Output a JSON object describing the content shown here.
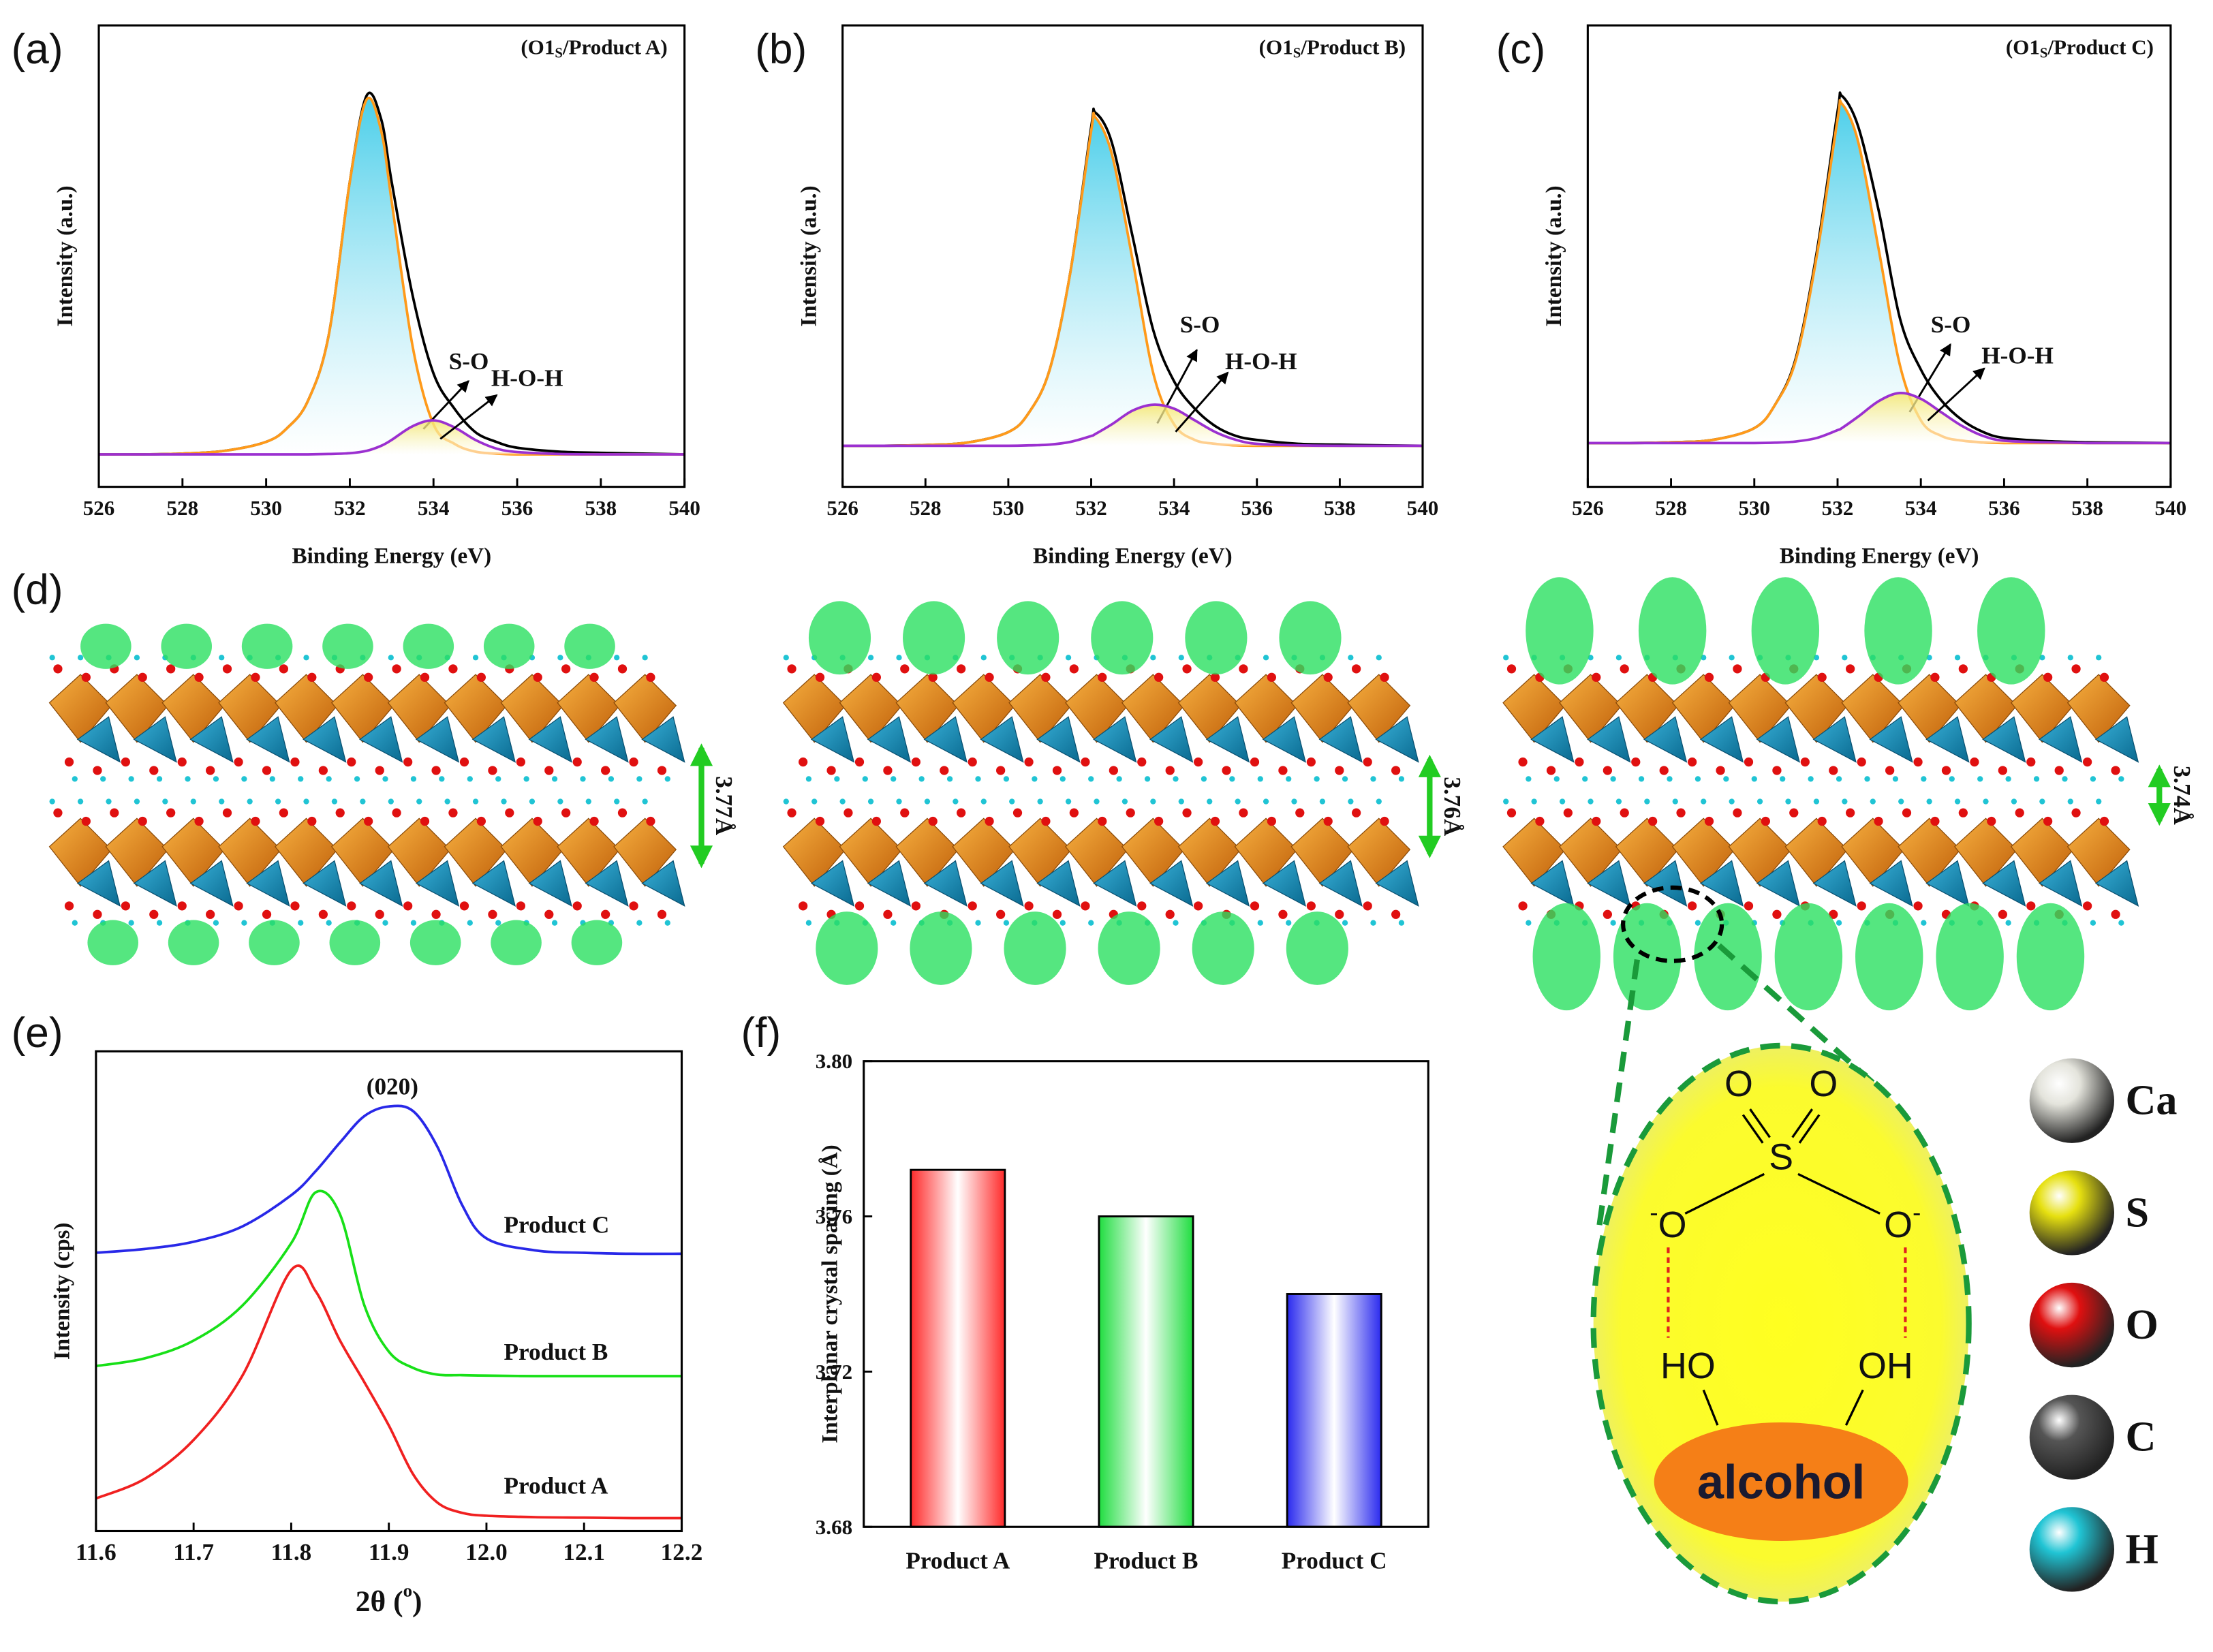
{
  "chart_data": [
    {
      "type": "line",
      "panel_label": "(a)",
      "title": [
        "(O1",
        "S",
        "/Product A)"
      ],
      "x_label": "Binding Energy (eV)",
      "y_label": "Intensity (a.u.)",
      "x": [
        526,
        527,
        528,
        529,
        530,
        530.5,
        531,
        531.5,
        532,
        532.4,
        532.75,
        533,
        533.5,
        534,
        534.5,
        535,
        535.5,
        536,
        537,
        538,
        539,
        540
      ],
      "xlim": [
        526,
        540
      ],
      "xticks": [
        526,
        528,
        530,
        532,
        534,
        536,
        538,
        540
      ],
      "ylim": [
        0,
        118
      ],
      "series": [
        {
          "color": "#000000",
          "values": [
            8.3,
            8.3,
            8.5,
            9.2,
            11.5,
            15,
            22,
            39,
            78,
            100,
            94,
            78,
            49,
            29,
            20,
            14,
            11.5,
            10,
            9,
            8.7,
            8.5,
            8.3
          ]
        },
        {
          "name": "S-O",
          "color": "#ff9a1a",
          "fill": "#2cc6e6",
          "values": [
            8.3,
            8.3,
            8.5,
            9.2,
            11.5,
            15,
            22,
            39,
            78,
            99,
            91,
            73,
            36,
            16,
            11,
            9,
            8.5,
            8.3,
            8.3,
            8.3,
            8.3,
            8.3
          ]
        },
        {
          "name": "H-O-H",
          "color": "#9b30d0",
          "fill": "#f5e66a",
          "values": [
            8.3,
            8.3,
            8.3,
            8.3,
            8.3,
            8.3,
            8.3,
            8.4,
            8.6,
            9.2,
            10.5,
            12,
            15.5,
            17,
            15.2,
            12,
            9.8,
            8.9,
            8.4,
            8.3,
            8.3,
            8.3
          ]
        }
      ]
    },
    {
      "type": "line",
      "panel_label": "(b)",
      "title": [
        "(O1",
        "S",
        "/Product B)"
      ],
      "x_label": "Binding Energy (eV)",
      "y_label": "Intensity (a.u.)",
      "x": [
        526,
        527,
        528,
        529,
        530,
        530.5,
        531,
        531.5,
        532,
        532.1,
        532.5,
        533,
        533.5,
        534,
        534.5,
        535,
        535.5,
        536,
        537,
        538,
        539,
        540
      ],
      "xlim": [
        526,
        540
      ],
      "xticks": [
        526,
        528,
        530,
        532,
        534,
        536,
        538,
        540
      ],
      "ylim": [
        0,
        118
      ],
      "series": [
        {
          "color": "#000000",
          "values": [
            10.5,
            10.5,
            10.7,
            11.3,
            14,
            19,
            30,
            55,
            92,
            95.7,
            88,
            64,
            40,
            27,
            20,
            15.5,
            13,
            12,
            11,
            10.8,
            10.6,
            10.5
          ]
        },
        {
          "name": "S-O",
          "color": "#ff9a1a",
          "fill": "#2cc6e6",
          "values": [
            10.5,
            10.5,
            10.7,
            11.3,
            14,
            19,
            30,
            55,
            91,
            94.5,
            85,
            58,
            29,
            16,
            12,
            11,
            10.6,
            10.5,
            10.5,
            10.5,
            10.5,
            10.5
          ]
        },
        {
          "name": "H-O-H",
          "color": "#9b30d0",
          "fill": "#f5e66a",
          "values": [
            10.5,
            10.5,
            10.5,
            10.5,
            10.5,
            10.6,
            10.8,
            11.5,
            13,
            13.5,
            16,
            19.5,
            21,
            20,
            17,
            14,
            12,
            11,
            10.6,
            10.5,
            10.5,
            10.5
          ]
        }
      ]
    },
    {
      "type": "line",
      "panel_label": "(c)",
      "title": [
        "(O1",
        "S",
        "/Product C)"
      ],
      "x_label": "Binding Energy (eV)",
      "y_label": "Intensity (a.u.)",
      "x": [
        526,
        527,
        528,
        529,
        530,
        530.5,
        531,
        531.5,
        532,
        532.1,
        532.5,
        533,
        533.5,
        534,
        534.5,
        535,
        535.5,
        536,
        537,
        538,
        539,
        540
      ],
      "xlim": [
        526,
        540
      ],
      "xticks": [
        526,
        528,
        530,
        532,
        534,
        536,
        538,
        540
      ],
      "ylim": [
        0,
        118
      ],
      "series": [
        {
          "color": "#000000",
          "values": [
            11.2,
            11.2,
            11.4,
            12,
            15,
            21,
            33,
            60,
            96,
            100,
            92,
            70,
            43,
            30,
            22,
            17,
            14,
            12.5,
            11.7,
            11.4,
            11.3,
            11.2
          ]
        },
        {
          "name": "S-O",
          "color": "#ff9a1a",
          "fill": "#2cc6e6",
          "values": [
            11.2,
            11.2,
            11.4,
            12,
            15,
            21,
            32.5,
            59,
            94,
            98,
            88,
            60,
            31,
            17,
            13,
            11.8,
            11.4,
            11.2,
            11.2,
            11.2,
            11.2,
            11.2
          ]
        },
        {
          "name": "H-O-H",
          "color": "#9b30d0",
          "fill": "#f5e66a",
          "values": [
            11.2,
            11.2,
            11.2,
            11.2,
            11.2,
            11.3,
            11.6,
            12.5,
            14.5,
            15,
            18,
            22,
            24,
            22.5,
            19,
            15.5,
            13,
            11.8,
            11.4,
            11.2,
            11.2,
            11.2
          ]
        }
      ]
    },
    {
      "type": "line",
      "panel_label": "(e)",
      "x_label": [
        "2θ (",
        "o",
        ")"
      ],
      "y_label": "Intensity (cps)",
      "annotation": "(020)",
      "x": [
        11.6,
        11.65,
        11.7,
        11.75,
        11.8,
        11.825,
        11.85,
        11.875,
        11.9,
        11.925,
        11.95,
        11.975,
        12.0,
        12.05,
        12.1,
        12.15,
        12.2
      ],
      "xlim": [
        11.6,
        12.2
      ],
      "xticks": [
        11.6,
        11.7,
        11.8,
        11.9,
        {
          "value": 12,
          "label": "12.0"
        },
        12.1,
        12.2
      ],
      "ylim": [
        0,
        100
      ],
      "series": [
        {
          "name": "Product A",
          "color": "#f02020",
          "values": [
            6.8,
            10.9,
            19,
            32.4,
            54.4,
            50,
            39.7,
            31,
            22,
            11.8,
            5.9,
            3.8,
            3.2,
            2.9,
            2.8,
            2.7,
            2.7
          ]
        },
        {
          "name": "Product B",
          "color": "#18e018",
          "values": [
            34.4,
            36,
            39.7,
            47,
            60,
            70.6,
            66,
            47,
            37.4,
            34,
            32.6,
            32.5,
            32.4,
            32.3,
            32.3,
            32.3,
            32.3
          ]
        },
        {
          "name": "Product C",
          "color": "#2828e8",
          "values": [
            58,
            58.8,
            60.3,
            63.5,
            70,
            75,
            81,
            86.5,
            88.5,
            87.5,
            80,
            68,
            61,
            58.5,
            58,
            57.8,
            57.8
          ]
        }
      ]
    },
    {
      "type": "bar",
      "panel_label": "(f)",
      "y_label": "Interplanar crystal spacing (Å)",
      "categories": [
        "Product A",
        "Product B",
        "Product C"
      ],
      "values": [
        3.772,
        3.76,
        3.74
      ],
      "colors": [
        "#ff2a2a",
        "#20dd40",
        "#2a2aee"
      ],
      "ylim": [
        3.68,
        3.8
      ],
      "yticks": [
        3.68,
        3.72,
        3.76,
        {
          "value": 3.8,
          "label": "3.80"
        }
      ]
    }
  ],
  "figure": {
    "structures": {
      "panel_label": "(d)",
      "spacings": [
        "3.77Å",
        "3.76Å",
        "3.74Å"
      ]
    },
    "diagram": {
      "top_left": "O",
      "top_right": "O",
      "center": "S",
      "left": "O",
      "right": "O",
      "charge": "-",
      "left_group": "HO",
      "right_group": "OH",
      "label": "alcohol"
    },
    "atom_legend": [
      {
        "symbol": "Ca",
        "color": "#e4e4dc"
      },
      {
        "symbol": "S",
        "color": "#e6e010"
      },
      {
        "symbol": "O",
        "color": "#e01010"
      },
      {
        "symbol": "C",
        "color": "#555555"
      },
      {
        "symbol": "H",
        "color": "#20c4d4"
      }
    ]
  }
}
